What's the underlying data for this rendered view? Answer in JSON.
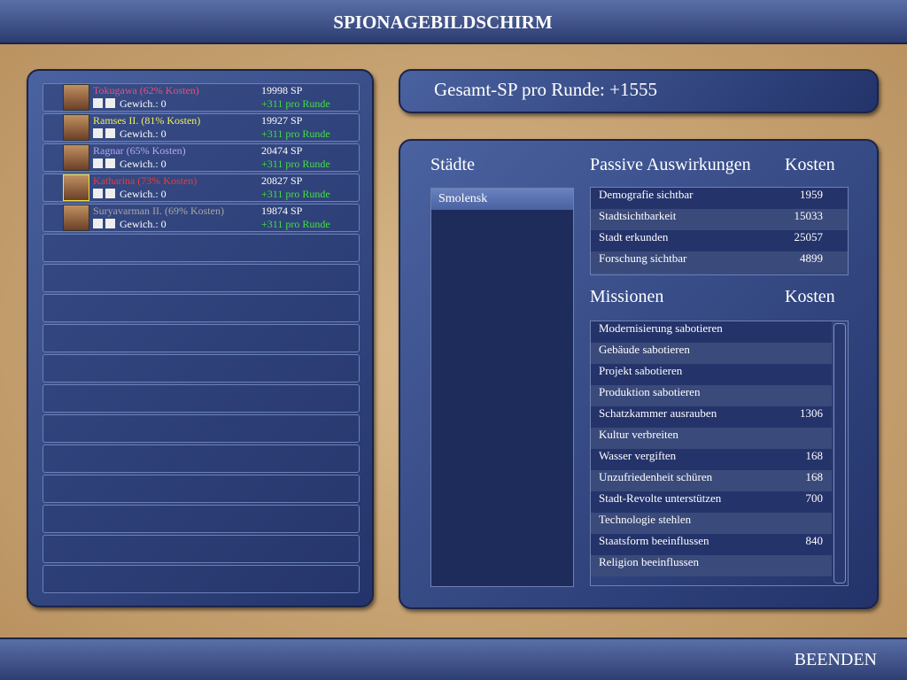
{
  "header": {
    "title": "SPIONAGEBILDSCHIRM"
  },
  "total": "Gesamt-SP pro Runde: +1555",
  "leaders": [
    {
      "name": "Tokugawa (62% Kosten)",
      "color": "#e8507a",
      "weight": "Gewich.: 0",
      "sp": "19998 SP",
      "per_turn": "+311 pro Runde"
    },
    {
      "name": "Ramses II. (81% Kosten)",
      "color": "#f0f060",
      "weight": "Gewich.: 0",
      "sp": "19927 SP",
      "per_turn": "+311 pro Runde"
    },
    {
      "name": "Ragnar (65% Kosten)",
      "color": "#b8a8f0",
      "weight": "Gewich.: 0",
      "sp": "20474 SP",
      "per_turn": "+311 pro Runde"
    },
    {
      "name": "Katharina (73% Kosten)",
      "color": "#e83c3c",
      "weight": "Gewich.: 0",
      "sp": "20827 SP",
      "per_turn": "+311 pro Runde"
    },
    {
      "name": "Suryavarman II. (69% Kosten)",
      "color": "#a8a8a8",
      "weight": "Gewich.: 0",
      "sp": "19874 SP",
      "per_turn": "+311 pro Runde"
    }
  ],
  "cities": {
    "title": "Städte",
    "items": [
      "Smolensk"
    ]
  },
  "passive": {
    "title": "Passive Auswirkungen",
    "cost_title": "Kosten",
    "rows": [
      {
        "name": "Demografie sichtbar",
        "cost": 1959
      },
      {
        "name": "Stadtsichtbarkeit",
        "cost": 15033
      },
      {
        "name": "Stadt erkunden",
        "cost": 25057
      },
      {
        "name": "Forschung sichtbar",
        "cost": 4899
      }
    ]
  },
  "missions": {
    "title": "Missionen",
    "cost_title": "Kosten",
    "rows": [
      {
        "name": "Modernisierung sabotieren"
      },
      {
        "name": "Gebäude sabotieren"
      },
      {
        "name": "Projekt sabotieren"
      },
      {
        "name": "Produktion sabotieren"
      },
      {
        "name": "Schatzkammer ausrauben",
        "cost": 1306
      },
      {
        "name": "Kultur verbreiten"
      },
      {
        "name": "Wasser vergiften",
        "cost": 168
      },
      {
        "name": "Unzufriedenheit schüren",
        "cost": 168
      },
      {
        "name": "Stadt-Revolte unterstützen",
        "cost": 700
      },
      {
        "name": "Technologie stehlen"
      },
      {
        "name": "Staatsform beeinflussen",
        "cost": 840
      },
      {
        "name": "Religion beeinflussen"
      }
    ]
  },
  "footer": {
    "button": "BEENDEN"
  }
}
